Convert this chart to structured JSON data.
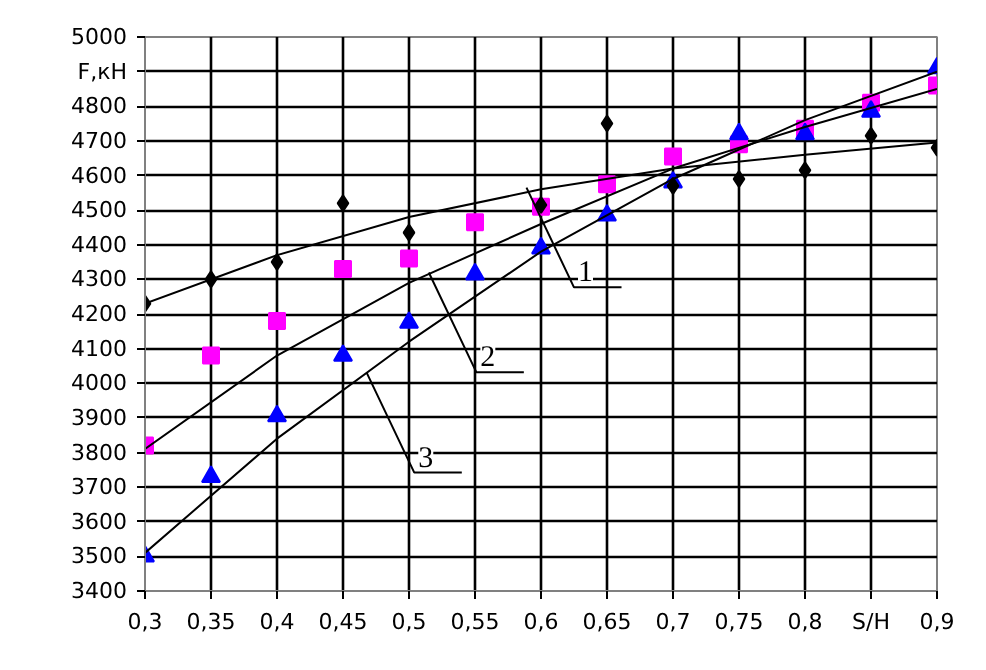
{
  "chart_data": {
    "type": "scatter",
    "xlabel": "S/H",
    "ylabel": "F,кН",
    "x": [
      0.3,
      0.35,
      0.4,
      0.45,
      0.5,
      0.55,
      0.6,
      0.65,
      0.7,
      0.75,
      0.8,
      0.85,
      0.9
    ],
    "series": [
      {
        "color": "#000000",
        "marker": "diamond",
        "values": [
          4230,
          4300,
          4350,
          4520,
          4435,
          null,
          4515,
          4750,
          4570,
          4590,
          4615,
          4715,
          4680
        ]
      },
      {
        "color": "#ff00ff",
        "marker": "square",
        "values": [
          3820,
          4080,
          4180,
          4330,
          4360,
          4465,
          4510,
          4575,
          4655,
          4690,
          4735,
          4810,
          4860
        ]
      },
      {
        "color": "#0000ff",
        "marker": "triangle",
        "values": [
          3500,
          3730,
          3905,
          4080,
          4175,
          4315,
          4390,
          4485,
          4580,
          4720,
          4720,
          4785,
          4910
        ]
      },
      {
        "type": "line",
        "color": "#000000",
        "marker": "none",
        "x": [
          0.3,
          0.4,
          0.5,
          0.6,
          0.7,
          0.8,
          0.9
        ],
        "values": [
          4230,
          4370,
          4480,
          4560,
          4620,
          4660,
          4695
        ]
      },
      {
        "type": "line",
        "color": "#000000",
        "marker": "none",
        "x": [
          0.3,
          0.4,
          0.5,
          0.6,
          0.7,
          0.8,
          0.9
        ],
        "values": [
          3810,
          4080,
          4290,
          4460,
          4620,
          4740,
          4850
        ]
      },
      {
        "type": "line",
        "color": "#000000",
        "marker": "none",
        "x": [
          0.3,
          0.4,
          0.5,
          0.6,
          0.7,
          0.8,
          0.9
        ],
        "values": [
          3510,
          3840,
          4120,
          4380,
          4590,
          4760,
          4900
        ]
      }
    ],
    "annotations": [
      {
        "text": "1",
        "x": 0.589,
        "y": 4565
      },
      {
        "text": "2",
        "x": 0.515,
        "y": 4320
      },
      {
        "text": "3",
        "x": 0.468,
        "y": 4030
      }
    ],
    "xlim": [
      0.3,
      0.9
    ],
    "ylim": [
      3400,
      5000
    ],
    "xticks": [
      {
        "value": 0.3,
        "label": "0,3"
      },
      {
        "value": 0.35,
        "label": "0,35"
      },
      {
        "value": 0.4,
        "label": "0,4"
      },
      {
        "value": 0.45,
        "label": "0,45"
      },
      {
        "value": 0.5,
        "label": "0,5"
      },
      {
        "value": 0.55,
        "label": "0,55"
      },
      {
        "value": 0.6,
        "label": "0,6"
      },
      {
        "value": 0.65,
        "label": "0,65"
      },
      {
        "value": 0.7,
        "label": "0,7"
      },
      {
        "value": 0.75,
        "label": "0,75"
      },
      {
        "value": 0.8,
        "label": "0,8"
      },
      {
        "value": 0.85,
        "label": null
      },
      {
        "value": 0.9,
        "label": "0,9"
      }
    ],
    "yticks": [
      3400,
      3500,
      3600,
      3700,
      3800,
      3900,
      4000,
      4100,
      4200,
      4300,
      4400,
      4500,
      4600,
      4700,
      4800,
      {
        "value": 4900,
        "label": null
      },
      5000
    ],
    "grid": true
  }
}
